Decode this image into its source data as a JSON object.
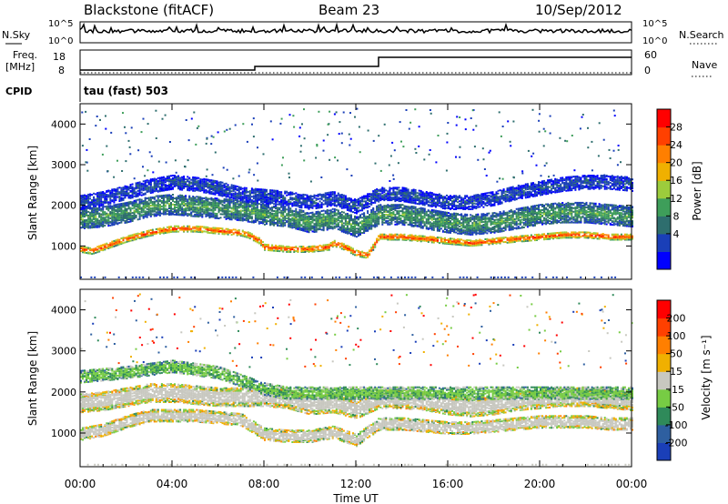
{
  "header": {
    "station": "Blackstone (fitACF)",
    "beam": "Beam 23",
    "date": "10/Sep/2012"
  },
  "top_panels": {
    "nsky_label": "N.Sky",
    "nsearch_label": "N.Search",
    "noise_ticks": [
      "10^5",
      "10^0"
    ],
    "freq_label_line1": "Freq.",
    "freq_label_line2": "[MHz]",
    "freq_ticks": [
      "18",
      "8"
    ],
    "nave_label": "Nave",
    "nave_ticks": [
      "60",
      "0"
    ],
    "cpid_label": "CPID",
    "cpid_value": "tau (fast) 503"
  },
  "x_axis": {
    "label": "Time UT",
    "ticks": [
      "00:00",
      "04:00",
      "08:00",
      "12:00",
      "16:00",
      "20:00",
      "00:00"
    ]
  },
  "colorbars": {
    "power": {
      "label": "Power [dB]",
      "ticks": [
        "28",
        "24",
        "20",
        "16",
        "12",
        "8",
        "4"
      ],
      "colors": [
        "#0000ff",
        "#1a3fb8",
        "#2e6e6e",
        "#3e9e5a",
        "#9ccc3c",
        "#f0b000",
        "#ff7f00",
        "#ff4000",
        "#ff0000"
      ]
    },
    "velocity": {
      "label": "Velocity [m s⁻¹]",
      "ticks": [
        "200",
        "100",
        "50",
        "15",
        "-15",
        "-50",
        "-100",
        "-200"
      ],
      "colors": [
        "#1a3fb8",
        "#2e5fa0",
        "#2f8a5a",
        "#77cc44",
        "#c8c8c0",
        "#f0b000",
        "#ff7f00",
        "#ff4000",
        "#ff0000"
      ]
    }
  },
  "chart_data": [
    {
      "type": "heatmap",
      "name": "Power",
      "ylabel": "Slant Range [km]",
      "ylim": [
        180,
        4500
      ],
      "xlim": [
        0,
        24
      ],
      "yticks": [
        1000,
        2000,
        3000,
        4000
      ],
      "xticks": [
        0,
        4,
        8,
        12,
        16,
        20,
        24
      ],
      "colorbar_range": [
        0,
        30
      ],
      "bands": [
        {
          "t": [
            0,
            0.5,
            1,
            2,
            3,
            4,
            5,
            6,
            7,
            7.3,
            7.8,
            8,
            9,
            10,
            10.8,
            11,
            11.5,
            12,
            12.5,
            13,
            14,
            15,
            16,
            17,
            18,
            19,
            20,
            21,
            22,
            23,
            24
          ],
          "r": [
            950,
            900,
            1000,
            1200,
            1350,
            1450,
            1450,
            1400,
            1350,
            1300,
            1150,
            1000,
            950,
            950,
            1000,
            1100,
            1000,
            850,
            800,
            1250,
            1250,
            1200,
            1150,
            1100,
            1150,
            1200,
            1250,
            1300,
            1300,
            1250,
            1250
          ],
          "power": 27,
          "width": 150
        },
        {
          "t": [
            0,
            1,
            2,
            3,
            4,
            5,
            6,
            7,
            8,
            9,
            10,
            11,
            12,
            13,
            14,
            15,
            16,
            17,
            18,
            19,
            20,
            21,
            22,
            23,
            24
          ],
          "r": [
            1700,
            1750,
            1850,
            2000,
            2050,
            2000,
            1950,
            1900,
            1800,
            1750,
            1600,
            1700,
            1500,
            1800,
            1800,
            1700,
            1600,
            1550,
            1600,
            1700,
            1800,
            1850,
            1850,
            1800,
            1750
          ],
          "power": 12,
          "width": 500
        },
        {
          "t": [
            0,
            1,
            2,
            3,
            4,
            5,
            6,
            7,
            8,
            9,
            10,
            11,
            12,
            13,
            14,
            15,
            16,
            17,
            18,
            19,
            20,
            21,
            22,
            23,
            24
          ],
          "r": [
            2100,
            2200,
            2350,
            2500,
            2600,
            2550,
            2450,
            2300,
            2250,
            2200,
            2100,
            2200,
            2000,
            2300,
            2300,
            2200,
            2100,
            2100,
            2200,
            2350,
            2450,
            2550,
            2600,
            2600,
            2550
          ],
          "power": 6,
          "width": 350
        }
      ]
    },
    {
      "type": "heatmap",
      "name": "Velocity",
      "ylabel": "Slant Range [km]",
      "ylim": [
        180,
        4500
      ],
      "xlim": [
        0,
        24
      ],
      "yticks": [
        1000,
        2000,
        3000,
        4000
      ],
      "xticks": [
        0,
        4,
        8,
        12,
        16,
        20,
        24
      ],
      "colorbar_range": [
        -200,
        200
      ],
      "bands": [
        {
          "t": [
            0,
            1,
            2,
            3,
            4,
            5,
            6,
            7,
            8,
            9,
            10,
            11,
            12,
            13,
            14,
            15,
            16,
            17,
            18,
            19,
            20,
            21,
            22,
            23,
            24
          ],
          "r": [
            1000,
            1100,
            1300,
            1450,
            1450,
            1450,
            1400,
            1350,
            1000,
            950,
            950,
            1050,
            850,
            1250,
            1250,
            1200,
            1150,
            1150,
            1200,
            1250,
            1300,
            1300,
            1300,
            1250,
            1250
          ],
          "velocity": 0,
          "width": 300
        },
        {
          "t": [
            0,
            1,
            2,
            3,
            4,
            5,
            6,
            7,
            8,
            9,
            10,
            11,
            12,
            13,
            14,
            15,
            16,
            17,
            18,
            19,
            20,
            21,
            22,
            23,
            24
          ],
          "r": [
            1750,
            1800,
            1900,
            2000,
            2000,
            1950,
            1900,
            1900,
            1900,
            1850,
            1700,
            1750,
            1600,
            1850,
            1850,
            1800,
            1700,
            1650,
            1700,
            1800,
            1850,
            1900,
            1900,
            1850,
            1800
          ],
          "velocity": 0,
          "width": 450
        },
        {
          "t": [
            0,
            2,
            4,
            6,
            7,
            8,
            9
          ],
          "r": [
            2400,
            2500,
            2650,
            2500,
            2300,
            2100,
            2000
          ],
          "velocity": -60,
          "width": 300
        }
      ]
    }
  ]
}
